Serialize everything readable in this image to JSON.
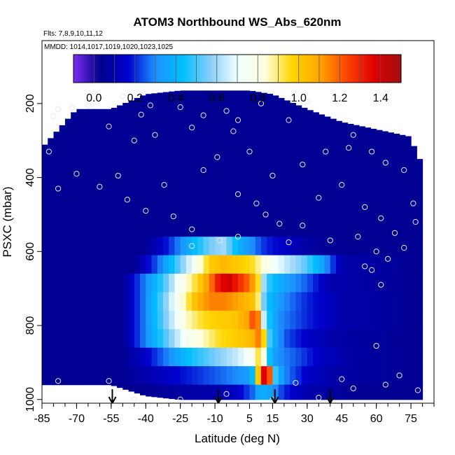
{
  "chart_data": {
    "type": "heatmap",
    "title": "ATOM3 Northbound WS_Abs_620nm",
    "subtitle_flights": "Flts: 7,8,9,10,11,12",
    "subtitle_dates": "MMDD: 1014,1017,1019,1020,1023,1025",
    "xlabel": "Latitude (deg N)",
    "ylabel": "PSXC (mbar)",
    "xlim": [
      -85,
      85
    ],
    "ylim": [
      1010,
      30
    ],
    "y_reversed": true,
    "x_ticks": [
      "-85",
      "-70",
      "-55",
      "-40",
      "-25",
      "-10",
      "5",
      "15",
      "30",
      "45",
      "60",
      "75"
    ],
    "x_tick_values": [
      -85,
      -70,
      -55,
      -40,
      -25,
      -10,
      5,
      15,
      30,
      45,
      60,
      75
    ],
    "y_ticks": [
      "200",
      "400",
      "600",
      "800",
      "1000"
    ],
    "y_tick_values": [
      200,
      400,
      600,
      800,
      1000
    ],
    "colorbar": {
      "min": -0.1,
      "max": 1.5,
      "ticks": [
        "0.0",
        "0.2",
        "0.4",
        "0.6",
        "0.8",
        "1.0",
        "1.2",
        "1.4"
      ],
      "tick_values": [
        0.0,
        0.2,
        0.4,
        0.6,
        0.8,
        1.0,
        1.2,
        1.4
      ],
      "colors": [
        "#7b2ff0",
        "#00008b",
        "#0000cd",
        "#1e90ff",
        "#00bfff",
        "#87cefa",
        "#f0ffff",
        "#ffffe0",
        "#ffd700",
        "#ffa500",
        "#ff4500",
        "#e00000",
        "#a01010"
      ]
    },
    "coverage": {
      "lats": [
        -85,
        -70,
        -55,
        -40,
        -25,
        -10,
        5,
        15,
        30,
        45,
        60,
        75,
        78
      ],
      "top_pressure": [
        320,
        215,
        215,
        175,
        165,
        165,
        165,
        175,
        215,
        250,
        270,
        290,
        350
      ],
      "bottom_pressure": [
        960,
        960,
        960,
        990,
        1000,
        1000,
        1000,
        1000,
        1000,
        1000,
        1000,
        1000,
        1000
      ]
    },
    "series": [
      {
        "pressure": [
          160,
          560
        ],
        "lats": [
          -85,
          -60,
          -40,
          -20,
          -10,
          0,
          10,
          30,
          50,
          70,
          78
        ],
        "values": [
          0.05,
          0.05,
          0.05,
          0.05,
          0.05,
          0.05,
          0.05,
          0.05,
          0.05,
          0.05,
          0.05
        ]
      },
      {
        "pressure": [
          560,
          610
        ],
        "lats": [
          -85,
          -40,
          -30,
          -20,
          -12,
          -6,
          0,
          6,
          12,
          20,
          30,
          40,
          78
        ],
        "values": [
          0.05,
          0.05,
          0.2,
          0.4,
          0.55,
          0.6,
          0.4,
          0.3,
          0.2,
          0.15,
          0.08,
          0.05,
          0.05
        ]
      },
      {
        "pressure": [
          610,
          660
        ],
        "lats": [
          -85,
          -45,
          -35,
          -28,
          -20,
          -12,
          -6,
          0,
          6,
          12,
          20,
          28,
          35,
          45,
          78
        ],
        "values": [
          0.05,
          0.05,
          0.25,
          0.45,
          0.7,
          1.0,
          1.05,
          1.0,
          0.95,
          0.8,
          0.65,
          0.55,
          0.4,
          0.1,
          0.05
        ]
      },
      {
        "pressure": [
          660,
          710
        ],
        "lats": [
          -85,
          -50,
          -40,
          -32,
          -25,
          -18,
          -12,
          -8,
          -4,
          0,
          4,
          8,
          12,
          20,
          30,
          40,
          78
        ],
        "values": [
          0.05,
          0.05,
          0.3,
          0.5,
          0.75,
          0.95,
          1.15,
          1.35,
          1.4,
          1.3,
          1.2,
          1.05,
          0.5,
          0.35,
          0.25,
          0.1,
          0.05
        ]
      },
      {
        "pressure": [
          710,
          760
        ],
        "lats": [
          -85,
          -50,
          -40,
          -32,
          -25,
          -18,
          -12,
          -6,
          0,
          4,
          8,
          12,
          20,
          30,
          45,
          78
        ],
        "values": [
          0.05,
          0.05,
          0.3,
          0.55,
          0.8,
          1.05,
          1.15,
          1.15,
          1.1,
          1.05,
          1.0,
          0.45,
          0.3,
          0.2,
          0.1,
          0.05
        ]
      },
      {
        "pressure": [
          760,
          810
        ],
        "lats": [
          -85,
          -50,
          -40,
          -30,
          -22,
          -15,
          -8,
          -2,
          4,
          8,
          12,
          18,
          30,
          45,
          78
        ],
        "values": [
          0.05,
          0.05,
          0.3,
          0.6,
          0.85,
          0.95,
          1.0,
          1.0,
          1.1,
          1.3,
          0.5,
          0.3,
          0.2,
          0.1,
          0.05
        ]
      },
      {
        "pressure": [
          810,
          860
        ],
        "lats": [
          -85,
          -50,
          -40,
          -30,
          -22,
          -15,
          -8,
          0,
          6,
          10,
          14,
          20,
          30,
          45,
          78
        ],
        "values": [
          0.05,
          0.05,
          0.3,
          0.55,
          0.75,
          0.85,
          0.95,
          1.0,
          1.05,
          1.2,
          0.45,
          0.25,
          0.15,
          0.08,
          0.05
        ]
      },
      {
        "pressure": [
          860,
          910
        ],
        "lats": [
          -85,
          -50,
          -40,
          -30,
          -20,
          -10,
          0,
          6,
          10,
          14,
          18,
          25,
          35,
          50,
          78
        ],
        "values": [
          0.05,
          0.05,
          0.15,
          0.3,
          0.45,
          0.55,
          0.65,
          0.75,
          1.0,
          0.4,
          0.3,
          0.25,
          0.15,
          0.08,
          0.05
        ]
      },
      {
        "pressure": [
          910,
          960
        ],
        "lats": [
          -85,
          -50,
          -40,
          -30,
          -20,
          -10,
          0,
          6,
          10,
          13,
          16,
          20,
          30,
          45,
          78
        ],
        "values": [
          0.05,
          0.05,
          0.1,
          0.15,
          0.2,
          0.25,
          0.3,
          0.35,
          1.3,
          1.45,
          0.5,
          0.3,
          0.15,
          0.08,
          0.05
        ]
      },
      {
        "pressure": [
          960,
          1010
        ],
        "lats": [
          -85,
          -40,
          -25,
          -10,
          0,
          6,
          10,
          14,
          20,
          30,
          50,
          78
        ],
        "values": [
          0.05,
          0.05,
          0.08,
          0.1,
          0.15,
          0.25,
          0.4,
          0.35,
          0.2,
          0.1,
          0.05,
          0.05
        ]
      }
    ],
    "arrow_markers": [
      -54.5,
      -8.5,
      16,
      40
    ],
    "circle_markers": [
      [
        -50,
        180
      ],
      [
        -65,
        205
      ],
      [
        -72,
        212
      ],
      [
        -80,
        235
      ],
      [
        -78,
        215
      ],
      [
        -38,
        205
      ],
      [
        -25,
        210
      ],
      [
        -15,
        232
      ],
      [
        -5,
        220
      ],
      [
        0,
        245
      ],
      [
        -2,
        275
      ],
      [
        10,
        200
      ],
      [
        22,
        245
      ],
      [
        30,
        195
      ],
      [
        50,
        285
      ],
      [
        -20,
        265
      ],
      [
        -42,
        230
      ],
      [
        -56,
        262
      ],
      [
        -36,
        285
      ],
      [
        -45,
        300
      ],
      [
        -70,
        390
      ],
      [
        -78,
        430
      ],
      [
        -82,
        330
      ],
      [
        -52,
        395
      ],
      [
        -32,
        420
      ],
      [
        -15,
        380
      ],
      [
        -9,
        345
      ],
      [
        5,
        330
      ],
      [
        15,
        395
      ],
      [
        28,
        365
      ],
      [
        38,
        330
      ],
      [
        48,
        320
      ],
      [
        58,
        330
      ],
      [
        64,
        360
      ],
      [
        72,
        380
      ],
      [
        -60,
        425
      ],
      [
        -48,
        460
      ],
      [
        -28,
        505
      ],
      [
        -20,
        540
      ],
      [
        0,
        445
      ],
      [
        8,
        470
      ],
      [
        12,
        500
      ],
      [
        18,
        525
      ],
      [
        28,
        530
      ],
      [
        35,
        455
      ],
      [
        45,
        420
      ],
      [
        55,
        480
      ],
      [
        62,
        510
      ],
      [
        68,
        550
      ],
      [
        76,
        470
      ],
      [
        -40,
        490
      ],
      [
        -8,
        570
      ],
      [
        0,
        560
      ],
      [
        22,
        575
      ],
      [
        40,
        570
      ],
      [
        52,
        560
      ],
      [
        60,
        600
      ],
      [
        72,
        590
      ],
      [
        -20,
        585
      ],
      [
        65,
        620
      ],
      [
        77,
        520
      ],
      [
        58,
        650
      ],
      [
        60,
        855
      ],
      [
        55,
        640
      ],
      [
        62,
        690
      ],
      [
        -78,
        950
      ],
      [
        -56,
        950
      ],
      [
        -5,
        985
      ],
      [
        -25,
        1000
      ],
      [
        15,
        1000
      ],
      [
        35,
        995
      ],
      [
        50,
        970
      ],
      [
        64,
        960
      ],
      [
        78,
        975
      ],
      [
        45,
        945
      ],
      [
        25,
        955
      ],
      [
        70,
        935
      ],
      [
        -45,
        1000
      ]
    ]
  }
}
